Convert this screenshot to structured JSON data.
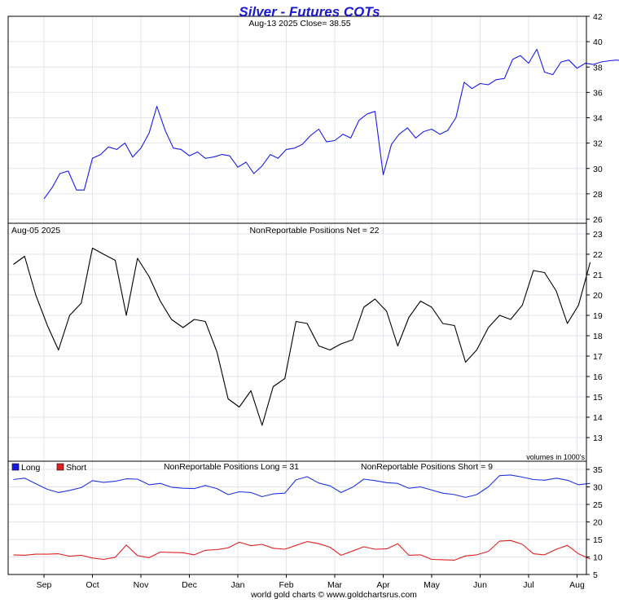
{
  "header": {
    "title": "Silver - Futures COTs",
    "subtitle": "Aug-13  2025   Close= 38.55"
  },
  "footer": {
    "credit": "world gold charts © www.goldchartsrus.com"
  },
  "colors": {
    "title": "#1a1acc",
    "price": "#1a1ae6",
    "net": "#000000",
    "long": "#2233dd",
    "short": "#dd2222",
    "grid": "#e2e6ec"
  },
  "months": [
    "Sep",
    "Oct",
    "Nov",
    "Dec",
    "Jan",
    "Feb",
    "Mar",
    "Apr",
    "May",
    "Jun",
    "Jul",
    "Aug"
  ],
  "chart_data": [
    {
      "type": "line",
      "title": "Silver - Futures COTs",
      "subtitle": "Aug-13  2025   Close= 38.55",
      "ylim": [
        26,
        42
      ],
      "yticks": [
        26,
        28,
        30,
        32,
        34,
        36,
        38,
        40,
        42
      ],
      "grid": true,
      "series": [
        {
          "x_months": [
            0.0,
            0.17,
            0.33,
            0.5,
            0.67,
            0.83,
            1.0,
            1.17,
            1.33,
            1.5,
            1.67,
            1.83,
            2.0,
            2.17,
            2.33,
            2.5,
            2.67,
            2.83,
            3.0,
            3.17,
            3.33,
            3.5,
            3.67,
            3.83,
            4.0,
            4.17,
            4.33,
            4.5,
            4.67,
            4.83,
            5.0,
            5.17,
            5.33,
            5.5,
            5.67,
            5.83,
            6.0,
            6.17,
            6.33,
            6.5,
            6.67,
            6.83,
            7.0,
            7.17,
            7.33,
            7.5,
            7.67,
            7.83,
            8.0,
            8.17,
            8.33,
            8.5,
            8.67,
            8.83,
            9.0,
            9.17,
            9.33,
            9.5,
            9.67,
            9.83,
            10.0,
            10.17,
            10.33,
            10.5,
            10.67,
            10.83,
            11.0,
            11.17,
            11.33,
            11.5,
            11.67,
            11.83,
            12.0,
            12.17
          ],
          "values": [
            27.6,
            28.5,
            29.6,
            29.8,
            28.3,
            28.3,
            30.8,
            31.1,
            31.7,
            31.5,
            32.0,
            30.9,
            31.6,
            32.8,
            34.9,
            33.0,
            31.6,
            31.5,
            31.0,
            31.3,
            30.8,
            30.9,
            31.1,
            31.0,
            30.1,
            30.5,
            29.6,
            30.2,
            31.1,
            30.8,
            31.5,
            31.6,
            31.9,
            32.6,
            33.1,
            32.1,
            32.2,
            32.7,
            32.4,
            33.8,
            34.3,
            34.5,
            29.5,
            31.9,
            32.7,
            33.2,
            32.4,
            32.9,
            33.1,
            32.7,
            33.0,
            34.0,
            36.8,
            36.3,
            36.7,
            36.6,
            37.0,
            37.1,
            38.6,
            38.9,
            38.3,
            39.4,
            37.6,
            37.4,
            38.4,
            38.55,
            37.9,
            38.3,
            38.2,
            38.4,
            38.5,
            38.55,
            38.4,
            38.55
          ]
        }
      ]
    },
    {
      "type": "line",
      "title": "NonReportable Positions Net = 22",
      "date_label": "Aug-05  2025",
      "note": "volumes in 1000's",
      "ylim": [
        13,
        23
      ],
      "yticks": [
        13,
        14,
        15,
        16,
        17,
        18,
        19,
        20,
        21,
        22,
        23
      ],
      "grid": true,
      "series": [
        {
          "x_months": [
            -0.63,
            -0.4,
            -0.17,
            0.07,
            0.3,
            0.53,
            0.77,
            1.0,
            1.23,
            1.47,
            1.7,
            1.93,
            2.17,
            2.4,
            2.63,
            2.87,
            3.1,
            3.33,
            3.57,
            3.8,
            4.03,
            4.27,
            4.5,
            4.73,
            4.97,
            5.2,
            5.43,
            5.67,
            5.9,
            6.13,
            6.37,
            6.6,
            6.83,
            7.07,
            7.3,
            7.53,
            7.77,
            8.0,
            8.23,
            8.47,
            8.7,
            8.93,
            9.17,
            9.4,
            9.63,
            9.87,
            10.1,
            10.33,
            10.57,
            10.8,
            11.03,
            11.27
          ],
          "values": [
            21.5,
            21.9,
            20.0,
            18.5,
            17.3,
            19.0,
            19.6,
            22.3,
            22.0,
            21.7,
            19.0,
            21.8,
            20.9,
            19.7,
            18.8,
            18.4,
            18.8,
            18.7,
            17.2,
            14.9,
            14.5,
            15.3,
            13.6,
            15.5,
            15.9,
            18.7,
            18.6,
            17.5,
            17.3,
            17.6,
            17.8,
            19.4,
            19.8,
            19.2,
            17.5,
            18.9,
            19.7,
            19.4,
            18.6,
            18.5,
            16.7,
            17.3,
            18.4,
            19.0,
            18.8,
            19.5,
            21.2,
            21.1,
            20.2,
            18.6,
            19.5,
            21.6
          ]
        }
      ]
    },
    {
      "type": "line",
      "title_long": "NonReportable Positions Long = 31",
      "title_short": "NonReportable Positions Short = 9",
      "ylim": [
        5,
        35
      ],
      "yticks": [
        5,
        10,
        15,
        20,
        25,
        30,
        35
      ],
      "grid": true,
      "legend": "top-left",
      "series": [
        {
          "name": "Long",
          "x_months": [
            -0.63,
            -0.4,
            -0.17,
            0.07,
            0.3,
            0.53,
            0.77,
            1.0,
            1.23,
            1.47,
            1.7,
            1.93,
            2.17,
            2.4,
            2.63,
            2.87,
            3.1,
            3.33,
            3.57,
            3.8,
            4.03,
            4.27,
            4.5,
            4.73,
            4.97,
            5.2,
            5.43,
            5.67,
            5.9,
            6.13,
            6.37,
            6.6,
            6.83,
            7.07,
            7.3,
            7.53,
            7.77,
            8.0,
            8.23,
            8.47,
            8.7,
            8.93,
            9.17,
            9.4,
            9.63,
            9.87,
            10.1,
            10.33,
            10.57,
            10.8,
            11.03,
            11.27
          ],
          "values": [
            32.1,
            32.5,
            30.9,
            29.3,
            28.4,
            29.0,
            29.8,
            31.8,
            31.3,
            31.6,
            32.3,
            32.2,
            30.6,
            31.0,
            29.9,
            29.6,
            29.5,
            30.4,
            29.5,
            27.8,
            28.6,
            28.4,
            27.2,
            28.0,
            28.2,
            32.0,
            32.9,
            31.1,
            30.3,
            28.4,
            29.9,
            32.2,
            31.8,
            31.2,
            31.0,
            29.6,
            30.0,
            29.1,
            28.2,
            27.8,
            27.0,
            27.8,
            30.0,
            33.2,
            33.4,
            32.8,
            32.1,
            31.9,
            32.5,
            31.9,
            30.6,
            31.0
          ]
        },
        {
          "name": "Short",
          "x_months": [
            -0.63,
            -0.4,
            -0.17,
            0.07,
            0.3,
            0.53,
            0.77,
            1.0,
            1.23,
            1.47,
            1.7,
            1.93,
            2.17,
            2.4,
            2.63,
            2.87,
            3.1,
            3.33,
            3.57,
            3.8,
            4.03,
            4.27,
            4.5,
            4.73,
            4.97,
            5.2,
            5.43,
            5.67,
            5.9,
            6.13,
            6.37,
            6.6,
            6.83,
            7.07,
            7.3,
            7.53,
            7.77,
            8.0,
            8.23,
            8.47,
            8.7,
            8.93,
            9.17,
            9.4,
            9.63,
            9.87,
            10.1,
            10.33,
            10.57,
            10.8,
            11.03,
            11.27
          ],
          "values": [
            10.6,
            10.5,
            10.8,
            10.8,
            10.9,
            10.2,
            10.5,
            9.7,
            9.3,
            9.9,
            13.4,
            10.4,
            9.8,
            11.4,
            11.3,
            11.2,
            10.6,
            11.9,
            12.1,
            12.6,
            14.2,
            13.2,
            13.6,
            12.5,
            12.2,
            13.3,
            14.4,
            13.8,
            12.8,
            10.5,
            11.7,
            12.9,
            12.2,
            12.3,
            13.8,
            10.5,
            10.6,
            9.3,
            9.2,
            9.1,
            10.3,
            10.6,
            11.6,
            14.5,
            14.7,
            13.6,
            10.9,
            10.6,
            12.2,
            13.3,
            10.9,
            9.4
          ]
        }
      ]
    }
  ]
}
